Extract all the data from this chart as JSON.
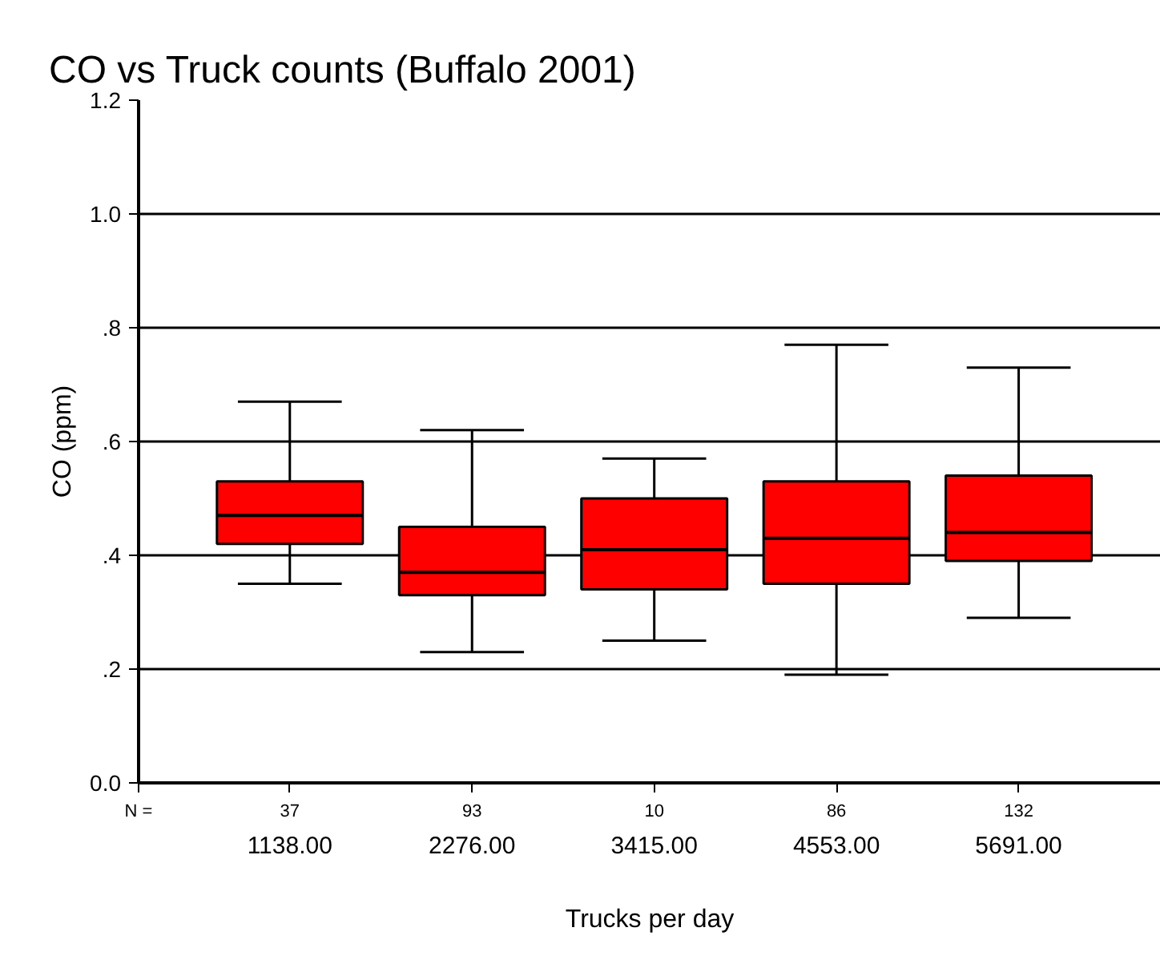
{
  "chart_data": {
    "type": "box",
    "title": "CO vs Truck counts (Buffalo 2001)",
    "xlabel": "Trucks per day",
    "ylabel": "CO (ppm)",
    "categories": [
      "1138.00",
      "2276.00",
      "3415.00",
      "4553.00",
      "5691.00"
    ],
    "series": [
      {
        "color": "#ff0000",
        "boxes": [
          {
            "low": 0.35,
            "q1": 0.42,
            "median": 0.47,
            "q3": 0.53,
            "high": 0.67
          },
          {
            "low": 0.23,
            "q1": 0.33,
            "median": 0.37,
            "q3": 0.45,
            "high": 0.62
          },
          {
            "low": 0.25,
            "q1": 0.34,
            "median": 0.41,
            "q3": 0.5,
            "high": 0.57
          },
          {
            "low": 0.19,
            "q1": 0.35,
            "median": 0.43,
            "q3": 0.53,
            "high": 0.77
          },
          {
            "low": 0.29,
            "q1": 0.39,
            "median": 0.44,
            "q3": 0.54,
            "high": 0.73
          }
        ]
      }
    ],
    "ylim": [
      0,
      1.2
    ],
    "yticks": [
      {
        "value": 0,
        "label": "0.0"
      },
      {
        "value": 0.2,
        "label": ".2"
      },
      {
        "value": 0.4,
        "label": ".4"
      },
      {
        "value": 0.6,
        "label": ".6"
      },
      {
        "value": 0.8,
        "label": ".8"
      },
      {
        "value": 1.0,
        "label": "1.0"
      },
      {
        "value": 1.2,
        "label": "1.2"
      }
    ],
    "grid": "y",
    "annotations": [
      "N =",
      "37",
      "93",
      "10",
      "86",
      "132"
    ]
  }
}
